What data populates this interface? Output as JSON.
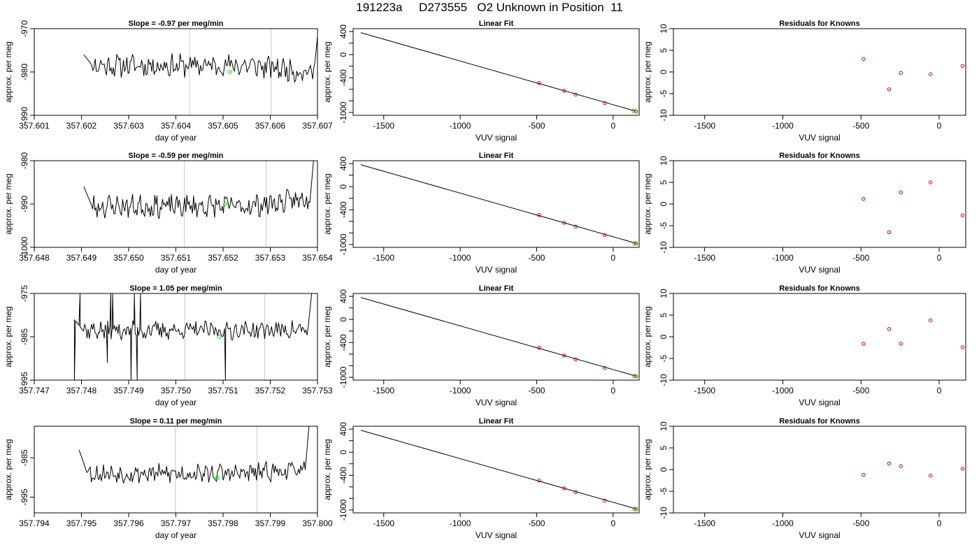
{
  "figure": {
    "title": "191223a     D273555   O2 Unknown in Position  11"
  },
  "chart_data": [
    {
      "row": 1,
      "type": "line",
      "title": "Slope =  -0.97  per meg/min",
      "xlabel": "day of year",
      "ylabel": "approx. per meg",
      "xlim": [
        357.601,
        357.607
      ],
      "ylim": [
        -990,
        -970
      ],
      "y_reversed": true,
      "xticks": [
        357.601,
        357.602,
        357.603,
        357.604,
        357.605,
        357.606,
        357.607
      ],
      "xtick_labels": [
        "357.601",
        "357.602",
        "357.603",
        "357.604",
        "357.605",
        "357.606",
        "357.607"
      ],
      "yticks": [
        -970,
        -980,
        -990
      ],
      "ytick_labels": [
        "-970",
        "-980",
        "-990"
      ],
      "vlines": [
        357.60429,
        357.60602
      ],
      "green_point": {
        "x": 357.60515,
        "y": -980
      },
      "trace": {
        "x_start": 357.60205,
        "x_end": 357.60709,
        "y_mean": -978.5,
        "y_end": -983,
        "noise": 2.2,
        "spikes": [],
        "seed": 11
      }
    },
    {
      "row": 1,
      "type": "scatter",
      "title": "Linear Fit",
      "xlabel": "VUV signal",
      "ylabel": "approx. per meg",
      "xlim": [
        -1700,
        170
      ],
      "ylim": [
        -1050,
        450
      ],
      "xticks": [
        -1500,
        -1000,
        -500,
        0
      ],
      "xtick_labels": [
        "-1500",
        "-1000",
        "-500",
        "0"
      ],
      "yticks": [
        400,
        0,
        -400,
        -1000
      ],
      "ytick_labels": [
        "400",
        "0",
        "-400",
        "-1000"
      ],
      "yticks_minor": [
        200,
        -200,
        -600,
        -800
      ],
      "fit_line": {
        "x": [
          -1650,
          150
        ],
        "y": [
          380,
          -980
        ]
      },
      "points": [
        {
          "x": -484,
          "y": -490
        },
        {
          "x": -320,
          "y": -625
        },
        {
          "x": -245,
          "y": -690
        },
        {
          "x": -55,
          "y": -838
        },
        {
          "x": 150,
          "y": -985
        }
      ],
      "green_point": {
        "x": 135,
        "y": -972
      }
    },
    {
      "row": 1,
      "type": "scatter",
      "title": "Residuals for Knowns",
      "xlabel": "VUV signal",
      "ylabel": "approx. per meg",
      "xlim": [
        -1700,
        170
      ],
      "ylim": [
        -10,
        10
      ],
      "xticks": [
        -1500,
        -1000,
        -500,
        0
      ],
      "xtick_labels": [
        "-1500",
        "-1000",
        "-500",
        "0"
      ],
      "yticks": [
        10,
        5,
        0,
        -5,
        -10
      ],
      "ytick_labels": [
        "10",
        "5",
        "0",
        "-5",
        "-10"
      ],
      "points": [
        {
          "x": -484,
          "y": 3
        },
        {
          "x": -320,
          "y": -4
        },
        {
          "x": -245,
          "y": -0.2
        },
        {
          "x": -55,
          "y": -0.5
        },
        {
          "x": 150,
          "y": 1.4
        }
      ]
    },
    {
      "row": 2,
      "type": "line",
      "title": "Slope =  -0.59  per meg/min",
      "xlabel": "day of year",
      "ylabel": "approx. per meg",
      "xlim": [
        357.648,
        357.654
      ],
      "ylim": [
        -1000,
        -980
      ],
      "y_reversed": true,
      "xticks": [
        357.648,
        357.649,
        357.65,
        357.651,
        357.652,
        357.653,
        357.654
      ],
      "xtick_labels": [
        "357.648",
        "357.649",
        "357.650",
        "357.651",
        "357.652",
        "357.653",
        "357.654"
      ],
      "yticks": [
        -980,
        -990,
        -1000
      ],
      "ytick_labels": [
        "-980",
        "-990",
        "-1000"
      ],
      "vlines": [
        357.65118,
        357.65291
      ],
      "green_point": {
        "x": 357.65205,
        "y": -990
      },
      "trace": {
        "x_start": 357.64905,
        "x_end": 357.65398,
        "y_mean": -990.5,
        "y_end": -986,
        "noise": 2.2,
        "spikes": [],
        "seed": 23
      }
    },
    {
      "row": 2,
      "type": "scatter",
      "title": "Linear Fit",
      "xlabel": "VUV signal",
      "ylabel": "approx. per meg",
      "xlim": [
        -1700,
        170
      ],
      "ylim": [
        -1050,
        450
      ],
      "xticks": [
        -1500,
        -1000,
        -500,
        0
      ],
      "xtick_labels": [
        "-1500",
        "-1000",
        "-500",
        "0"
      ],
      "yticks": [
        400,
        0,
        -400,
        -1000
      ],
      "ytick_labels": [
        "400",
        "0",
        "-400",
        "-1000"
      ],
      "yticks_minor": [
        200,
        -200,
        -600,
        -800
      ],
      "fit_line": {
        "x": [
          -1650,
          150
        ],
        "y": [
          380,
          -980
        ]
      },
      "points": [
        {
          "x": -484,
          "y": -490
        },
        {
          "x": -320,
          "y": -625
        },
        {
          "x": -245,
          "y": -690
        },
        {
          "x": -55,
          "y": -838
        },
        {
          "x": 150,
          "y": -985
        }
      ],
      "green_point": {
        "x": 140,
        "y": -982
      }
    },
    {
      "row": 2,
      "type": "scatter",
      "title": "Residuals for Knowns",
      "xlabel": "VUV signal",
      "ylabel": "approx. per meg",
      "xlim": [
        -1700,
        170
      ],
      "ylim": [
        -10,
        10
      ],
      "xticks": [
        -1500,
        -1000,
        -500,
        0
      ],
      "xtick_labels": [
        "-1500",
        "-1000",
        "-500",
        "0"
      ],
      "yticks": [
        10,
        5,
        0,
        -5,
        -10
      ],
      "ytick_labels": [
        "10",
        "5",
        "0",
        "-5",
        "-10"
      ],
      "points": [
        {
          "x": -484,
          "y": 1.2
        },
        {
          "x": -320,
          "y": -6.5
        },
        {
          "x": -245,
          "y": 2.7
        },
        {
          "x": -55,
          "y": 5
        },
        {
          "x": 150,
          "y": -2.6
        }
      ]
    },
    {
      "row": 3,
      "type": "line",
      "title": "Slope =  1.05  per meg/min",
      "xlabel": "day of year",
      "ylabel": "approx. per meg",
      "xlim": [
        357.747,
        357.753
      ],
      "ylim": [
        -995,
        -975
      ],
      "y_reversed": true,
      "xticks": [
        357.747,
        357.748,
        357.749,
        357.75,
        357.751,
        357.752,
        357.753
      ],
      "xtick_labels": [
        "357.747",
        "357.748",
        "357.749",
        "357.750",
        "357.751",
        "357.752",
        "357.753"
      ],
      "yticks": [
        -975,
        -985,
        -995
      ],
      "ytick_labels": [
        "-975",
        "-985",
        "-995"
      ],
      "vlines": [
        357.75019,
        357.75188
      ],
      "green_point": {
        "x": 357.75092,
        "y": -985
      },
      "trace": {
        "x_start": 357.74785,
        "x_end": 357.75295,
        "y_mean": -983.5,
        "y_end": -983,
        "noise": 1.8,
        "spikes": [
          [
            357.74785,
            -995
          ],
          [
            357.74797,
            -975
          ],
          [
            357.74855,
            -991
          ],
          [
            357.74862,
            -975
          ],
          [
            357.74866,
            -975
          ],
          [
            357.74905,
            -995
          ],
          [
            357.74912,
            -975
          ],
          [
            357.74918,
            -995
          ],
          [
            357.74925,
            -975
          ],
          [
            357.75105,
            -995
          ]
        ],
        "seed": 37
      }
    },
    {
      "row": 3,
      "type": "scatter",
      "title": "Linear Fit",
      "xlabel": "VUV signal",
      "ylabel": "approx. per meg",
      "xlim": [
        -1700,
        170
      ],
      "ylim": [
        -1050,
        450
      ],
      "xticks": [
        -1500,
        -1000,
        -500,
        0
      ],
      "xtick_labels": [
        "-1500",
        "-1000",
        "-500",
        "0"
      ],
      "yticks": [
        400,
        0,
        -400,
        -1000
      ],
      "ytick_labels": [
        "400",
        "0",
        "-400",
        "-1000"
      ],
      "yticks_minor": [
        200,
        -200,
        -600,
        -800
      ],
      "fit_line": {
        "x": [
          -1650,
          150
        ],
        "y": [
          380,
          -980
        ]
      },
      "points": [
        {
          "x": -484,
          "y": -490
        },
        {
          "x": -320,
          "y": -625
        },
        {
          "x": -245,
          "y": -690
        },
        {
          "x": -55,
          "y": -838
        },
        {
          "x": 150,
          "y": -985
        }
      ],
      "green_point": {
        "x": 138,
        "y": -980
      }
    },
    {
      "row": 3,
      "type": "scatter",
      "title": "Residuals for Knowns",
      "xlabel": "VUV signal",
      "ylabel": "approx. per meg",
      "xlim": [
        -1700,
        170
      ],
      "ylim": [
        -10,
        10
      ],
      "xticks": [
        -1500,
        -1000,
        -500,
        0
      ],
      "xtick_labels": [
        "-1500",
        "-1000",
        "-500",
        "0"
      ],
      "yticks": [
        10,
        5,
        0,
        -5,
        -10
      ],
      "ytick_labels": [
        "10",
        "5",
        "0",
        "-5",
        "-10"
      ],
      "points": [
        {
          "x": -484,
          "y": -1.6
        },
        {
          "x": -320,
          "y": 1.8
        },
        {
          "x": -245,
          "y": -1.6
        },
        {
          "x": -55,
          "y": 3.8
        },
        {
          "x": 150,
          "y": -2.4
        }
      ]
    },
    {
      "row": 4,
      "type": "line",
      "title": "Slope =  0.11  per meg/min",
      "xlabel": "day of year",
      "ylabel": "approx. per meg",
      "xlim": [
        357.794,
        357.8
      ],
      "ylim": [
        -999,
        -977
      ],
      "y_reversed": true,
      "xticks": [
        357.794,
        357.795,
        357.796,
        357.797,
        357.798,
        357.799,
        357.8
      ],
      "xtick_labels": [
        "357.794",
        "357.795",
        "357.796",
        "357.797",
        "357.798",
        "357.799",
        "357.800"
      ],
      "yticks": [
        -985,
        -995
      ],
      "ytick_labels": [
        "-985",
        "-995"
      ],
      "vlines": [
        357.79699,
        357.79872
      ],
      "green_point": {
        "x": 357.79788,
        "y": -990
      },
      "trace": {
        "x_start": 357.79495,
        "x_end": 357.79988,
        "y_mean": -989,
        "y_end": -986,
        "noise": 2.0,
        "spikes": [],
        "seed": 53
      }
    },
    {
      "row": 4,
      "type": "scatter",
      "title": "Linear Fit",
      "xlabel": "VUV signal",
      "ylabel": "approx. per meg",
      "xlim": [
        -1700,
        170
      ],
      "ylim": [
        -1050,
        450
      ],
      "xticks": [
        -1500,
        -1000,
        -500,
        0
      ],
      "xtick_labels": [
        "-1500",
        "-1000",
        "-500",
        "0"
      ],
      "yticks": [
        400,
        0,
        -400,
        -1000
      ],
      "ytick_labels": [
        "400",
        "0",
        "-400",
        "-1000"
      ],
      "yticks_minor": [
        200,
        -200,
        -600,
        -800
      ],
      "fit_line": {
        "x": [
          -1650,
          150
        ],
        "y": [
          380,
          -980
        ]
      },
      "points": [
        {
          "x": -484,
          "y": -490
        },
        {
          "x": -320,
          "y": -625
        },
        {
          "x": -245,
          "y": -690
        },
        {
          "x": -55,
          "y": -838
        },
        {
          "x": 150,
          "y": -985
        }
      ],
      "green_point": {
        "x": 140,
        "y": -982
      }
    },
    {
      "row": 4,
      "type": "scatter",
      "title": "Residuals for Knowns",
      "xlabel": "VUV signal",
      "ylabel": "approx. per meg",
      "xlim": [
        -1700,
        170
      ],
      "ylim": [
        -10,
        10
      ],
      "xticks": [
        -1500,
        -1000,
        -500,
        0
      ],
      "xtick_labels": [
        "-1500",
        "-1000",
        "-500",
        "0"
      ],
      "yticks": [
        10,
        5,
        0,
        -5,
        -10
      ],
      "ytick_labels": [
        "10",
        "5",
        "0",
        "-5",
        "-10"
      ],
      "points": [
        {
          "x": -484,
          "y": -1.2
        },
        {
          "x": -320,
          "y": 1.4
        },
        {
          "x": -245,
          "y": 0.8
        },
        {
          "x": -55,
          "y": -1.4
        },
        {
          "x": 150,
          "y": 0.2
        }
      ]
    }
  ],
  "colors": {
    "trace": "#000000",
    "fit_line": "#000000",
    "known_points": "#cc0000",
    "unknown_point": "#00dd00",
    "vlines": "#c8c8c8",
    "axes": "#000000"
  }
}
